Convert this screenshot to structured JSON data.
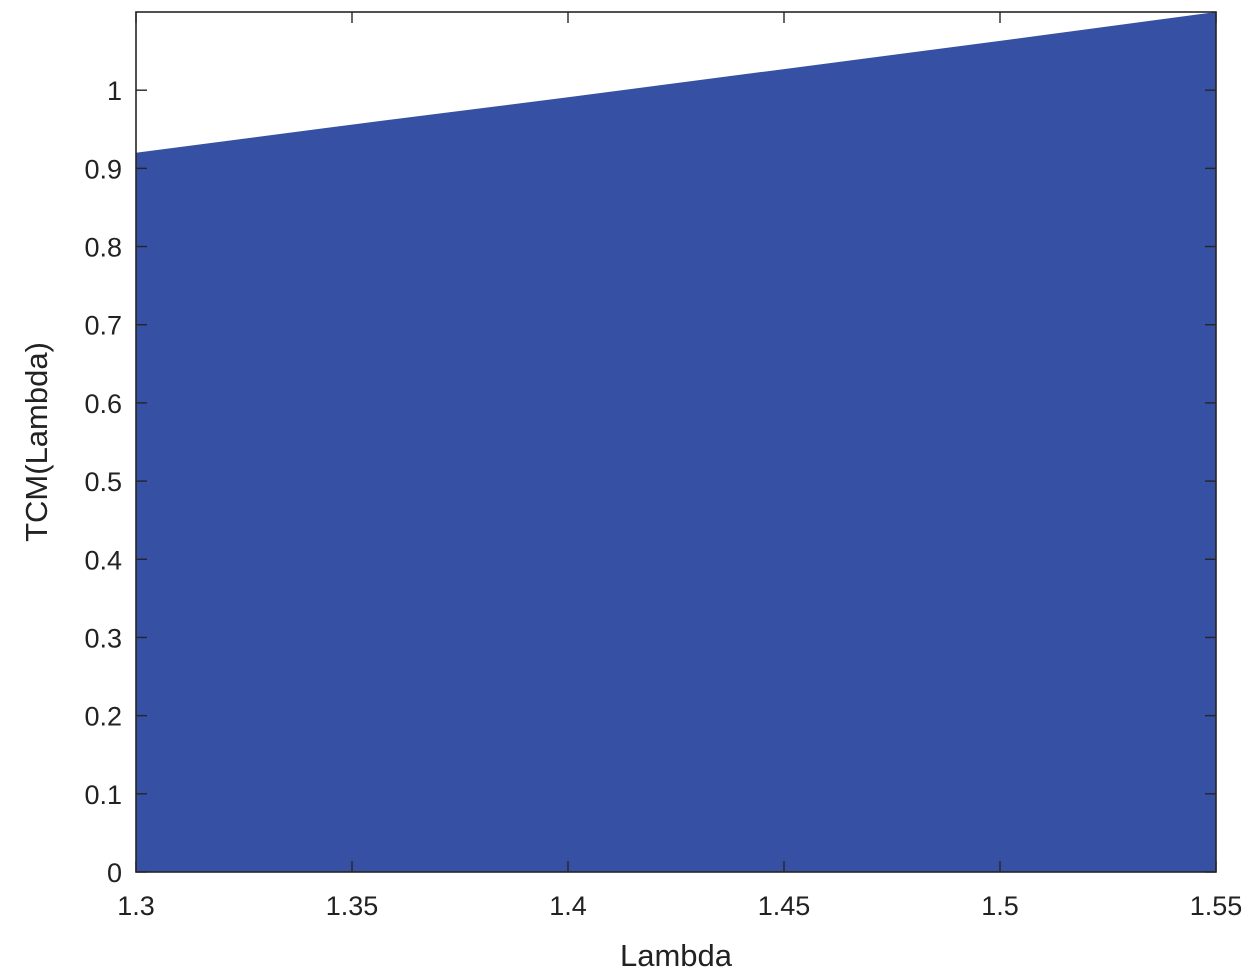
{
  "chart_data": {
    "type": "area",
    "title": "",
    "xlabel": "Lambda",
    "ylabel": "TCM(Lambda)",
    "xlim": [
      1.3,
      1.55
    ],
    "ylim": [
      0,
      1.1
    ],
    "xticks": [
      1.3,
      1.35,
      1.4,
      1.45,
      1.5,
      1.55
    ],
    "xtick_labels": [
      "1.3",
      "1.35",
      "1.4",
      "1.45",
      "1.5",
      "1.55"
    ],
    "yticks": [
      0,
      0.1,
      0.2,
      0.3,
      0.4,
      0.5,
      0.6,
      0.7,
      0.8,
      0.9,
      1
    ],
    "ytick_labels": [
      "0",
      "0.1",
      "0.2",
      "0.3",
      "0.4",
      "0.5",
      "0.6",
      "0.7",
      "0.8",
      "0.9",
      "1"
    ],
    "grid": false,
    "series": [
      {
        "x": [
          1.3,
          1.35,
          1.4,
          1.45,
          1.5,
          1.55
        ],
        "values": [
          0.92,
          0.956,
          0.991,
          1.027,
          1.063,
          1.1
        ],
        "color": "#3651a4"
      }
    ]
  }
}
